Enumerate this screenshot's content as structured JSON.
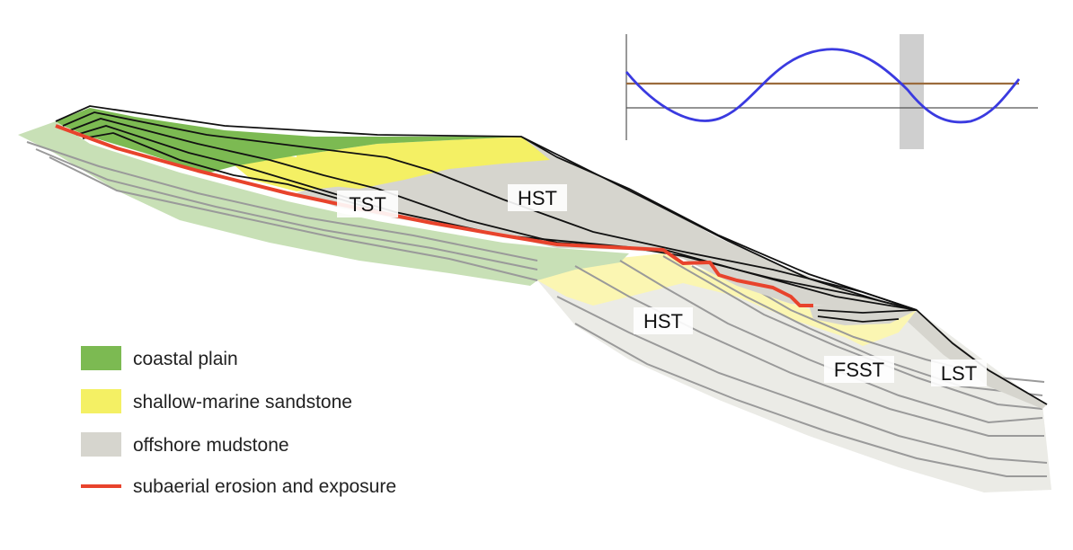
{
  "labels": {
    "tst": "TST",
    "hst_upper": "HST",
    "hst_lower": "HST",
    "fsst": "FSST",
    "lst": "LST"
  },
  "legend": [
    {
      "key": "coastal_plain",
      "label": "coastal plain",
      "color": "#7cba52"
    },
    {
      "key": "shallow_marine",
      "label": "shallow-marine sandstone",
      "color": "#f4f064"
    },
    {
      "key": "offshore_mud",
      "label": "offshore mudstone",
      "color": "#d6d5ce"
    },
    {
      "key": "erosion",
      "label": "subaerial erosion and exposure",
      "color": "#e8432c"
    }
  ],
  "colors": {
    "coastal_plain": "#7cba52",
    "shallow_marine": "#f4f064",
    "offshore_mud": "#d6d5ce",
    "old_offshore": "#ebebe6",
    "old_marine": "#fbf6b2",
    "old_coastal": "#c8e0b6",
    "erosion": "#e8432c",
    "sealevel_curve": "#3a3ae0",
    "mean_line": "#9b6b3c",
    "highlight_band": "#cfcfcf"
  }
}
